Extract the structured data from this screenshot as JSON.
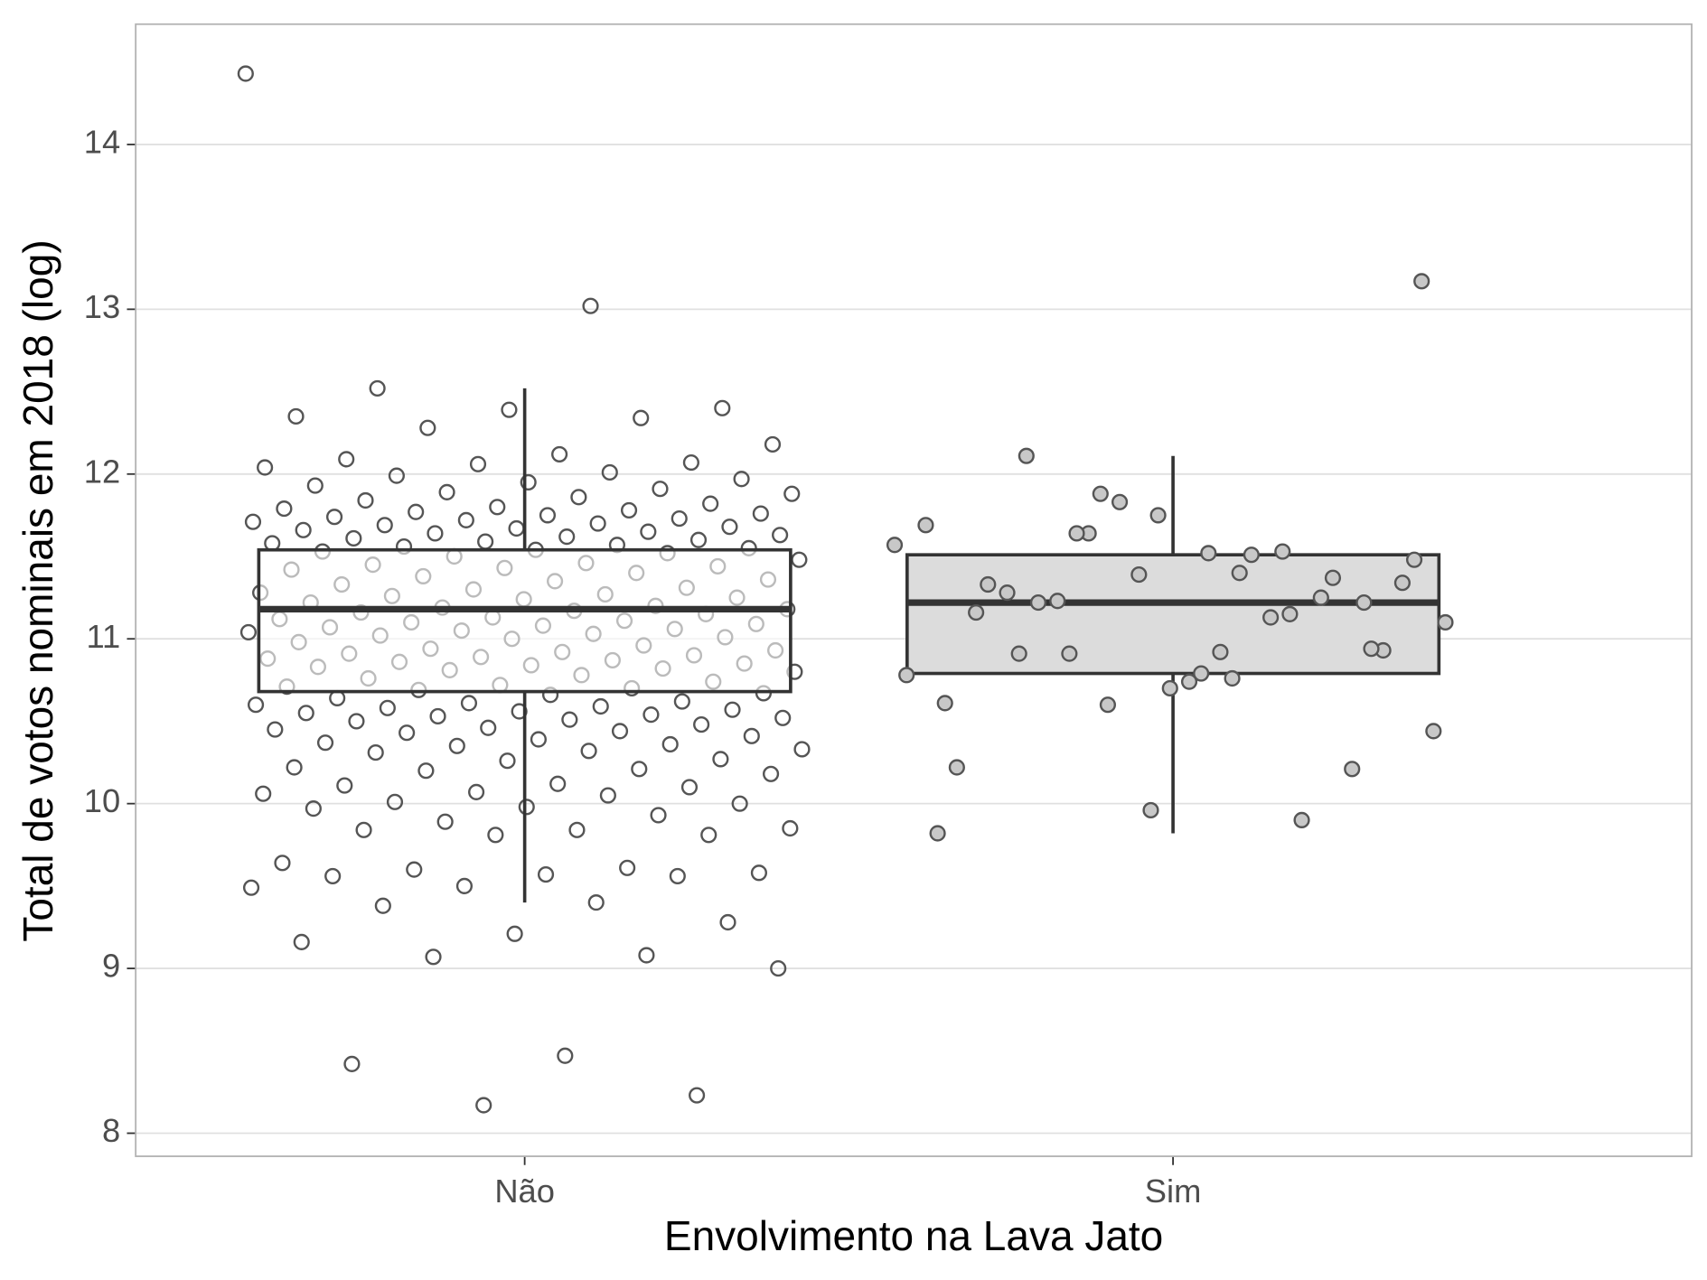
{
  "chart_data": {
    "type": "boxplot",
    "x_label": "Envolvimento na Lava Jato",
    "y_label": "Total de votos nominais em 2018 (log)",
    "ylim": [
      7.86,
      14.73
    ],
    "yticks": [
      8,
      9,
      10,
      11,
      12,
      13,
      14
    ],
    "grid": true,
    "groups": [
      {
        "name": "Não",
        "whisker_low": 9.4,
        "q1": 10.68,
        "median": 11.18,
        "q3": 11.54,
        "whisker_high": 12.52,
        "box_fill": "#ffffff",
        "box_opacity": 0.6,
        "point_fill": "none",
        "points_above_box": false,
        "points": [
          14.43,
          13.02,
          12.52,
          12.4,
          12.39,
          12.35,
          12.34,
          12.28,
          12.18,
          12.12,
          12.09,
          12.07,
          12.06,
          12.04,
          12.01,
          11.99,
          11.97,
          11.95,
          11.93,
          11.91,
          11.89,
          11.88,
          11.86,
          11.84,
          11.82,
          11.8,
          11.79,
          11.78,
          11.77,
          11.76,
          11.75,
          11.74,
          11.73,
          11.72,
          11.71,
          11.7,
          11.69,
          11.68,
          11.67,
          11.66,
          11.65,
          11.64,
          11.63,
          11.62,
          11.61,
          11.6,
          11.59,
          11.58,
          11.57,
          11.56,
          11.55,
          11.54,
          11.53,
          11.52,
          11.5,
          11.48,
          11.46,
          11.45,
          11.44,
          11.43,
          11.42,
          11.4,
          11.38,
          11.36,
          11.35,
          11.33,
          11.31,
          11.3,
          11.28,
          11.27,
          11.26,
          11.25,
          11.24,
          11.22,
          11.2,
          11.19,
          11.18,
          11.17,
          11.16,
          11.15,
          11.13,
          11.12,
          11.11,
          11.1,
          11.09,
          11.08,
          11.07,
          11.06,
          11.05,
          11.04,
          11.03,
          11.02,
          11.01,
          11.0,
          10.98,
          10.96,
          10.94,
          10.93,
          10.92,
          10.91,
          10.9,
          10.89,
          10.88,
          10.87,
          10.86,
          10.85,
          10.84,
          10.83,
          10.82,
          10.81,
          10.8,
          10.78,
          10.76,
          10.74,
          10.72,
          10.71,
          10.7,
          10.69,
          10.67,
          10.66,
          10.64,
          10.62,
          10.61,
          10.6,
          10.59,
          10.58,
          10.57,
          10.56,
          10.55,
          10.54,
          10.53,
          10.52,
          10.51,
          10.5,
          10.48,
          10.46,
          10.45,
          10.44,
          10.43,
          10.41,
          10.39,
          10.37,
          10.36,
          10.35,
          10.33,
          10.32,
          10.31,
          10.27,
          10.26,
          10.22,
          10.21,
          10.2,
          10.18,
          10.12,
          10.11,
          10.1,
          10.07,
          10.06,
          10.05,
          10.01,
          10.0,
          9.98,
          9.97,
          9.93,
          9.89,
          9.85,
          9.84,
          9.84,
          9.81,
          9.81,
          9.64,
          9.61,
          9.6,
          9.58,
          9.57,
          9.56,
          9.56,
          9.5,
          9.49,
          9.4,
          9.38,
          9.28,
          9.21,
          9.16,
          9.08,
          9.07,
          9.0,
          8.47,
          8.42,
          8.23,
          8.17
        ]
      },
      {
        "name": "Sim",
        "whisker_low": 9.82,
        "q1": 10.79,
        "median": 11.22,
        "q3": 11.51,
        "whisker_high": 12.11,
        "box_fill": "#dcdcdc",
        "box_opacity": 1,
        "point_fill": "#c8c8c8",
        "points_above_box": true,
        "points": [
          11.88,
          11.1,
          10.76,
          10.91,
          11.22,
          9.96,
          9.82,
          11.53,
          10.91,
          11.48,
          10.79,
          11.33,
          11.37,
          11.83,
          10.78,
          11.51,
          11.22,
          10.93,
          10.7,
          10.22,
          9.9,
          11.64,
          10.44,
          10.92,
          11.28,
          10.21,
          11.39,
          11.69,
          11.13,
          11.23,
          11.34,
          10.74,
          11.16,
          11.25,
          10.6,
          11.57,
          11.4,
          12.11,
          10.94,
          11.75,
          10.61,
          11.15,
          11.64,
          13.17,
          11.52
        ]
      }
    ]
  }
}
